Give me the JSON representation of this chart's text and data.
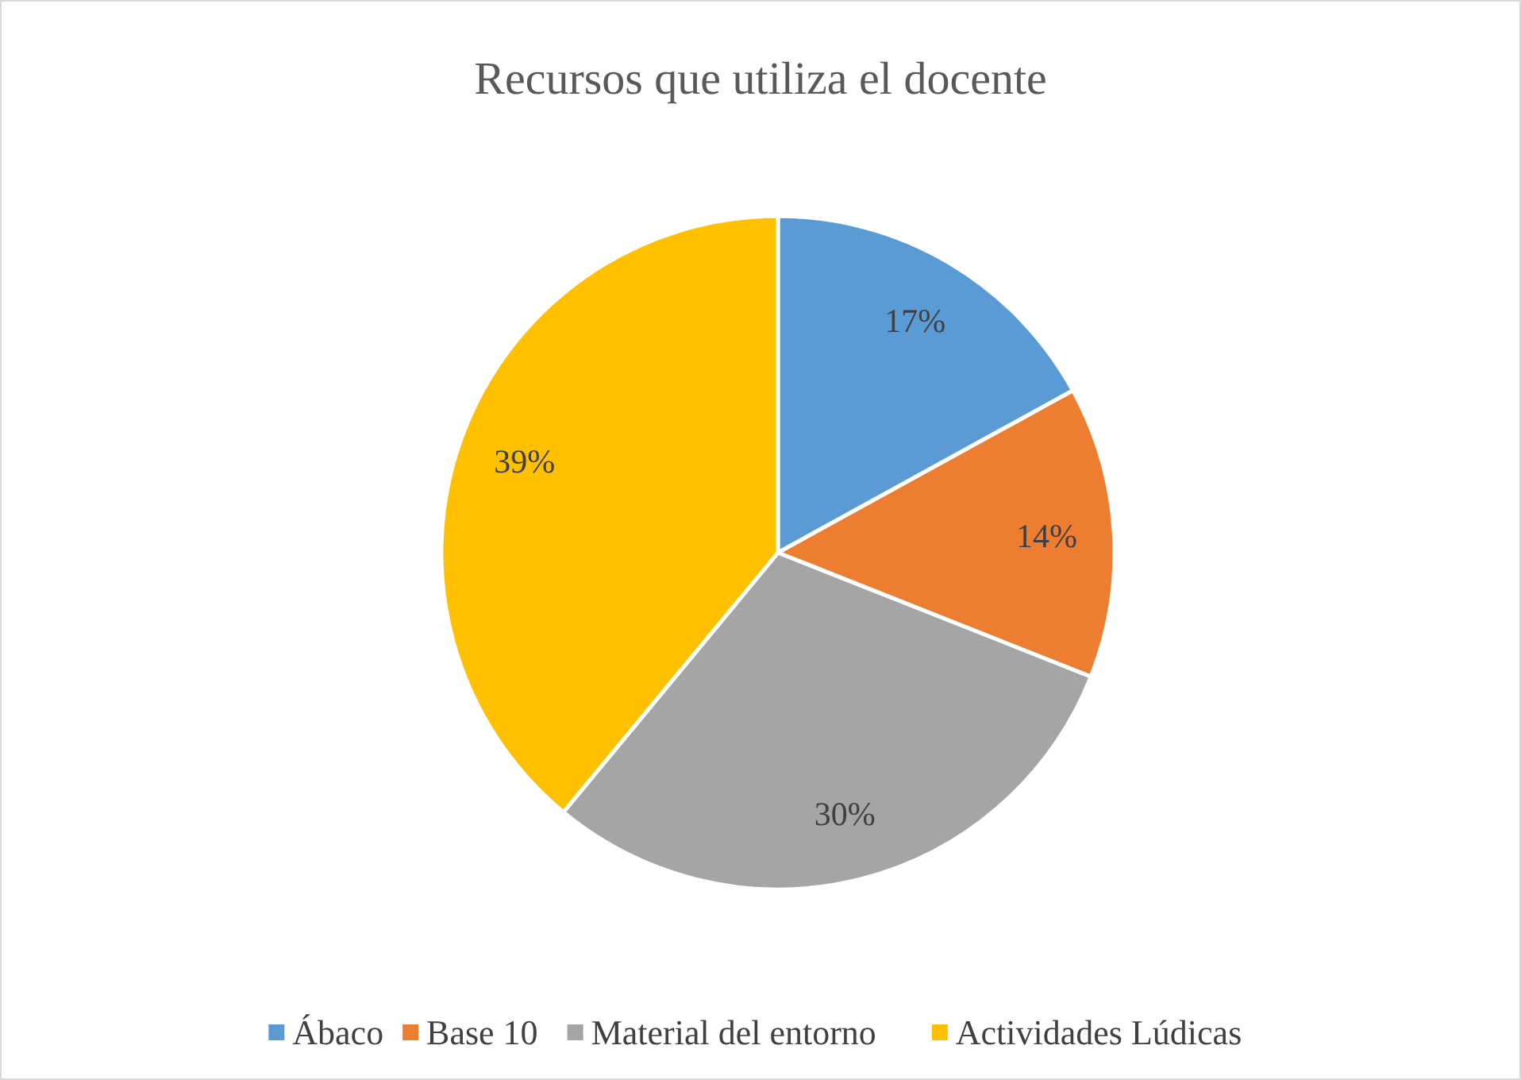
{
  "chart_data": {
    "type": "pie",
    "title": "Recursos que utiliza el docente",
    "categories": [
      "Ábaco",
      "Base 10",
      "Material del entorno",
      "Actividades Lúdicas"
    ],
    "values": [
      17,
      14,
      30,
      39
    ],
    "colors": [
      "#5b9bd5",
      "#ed7d31",
      "#a5a5a5",
      "#ffc000"
    ],
    "value_labels": [
      "17%",
      "14%",
      "30%",
      "39%"
    ],
    "legend": "bottom"
  }
}
